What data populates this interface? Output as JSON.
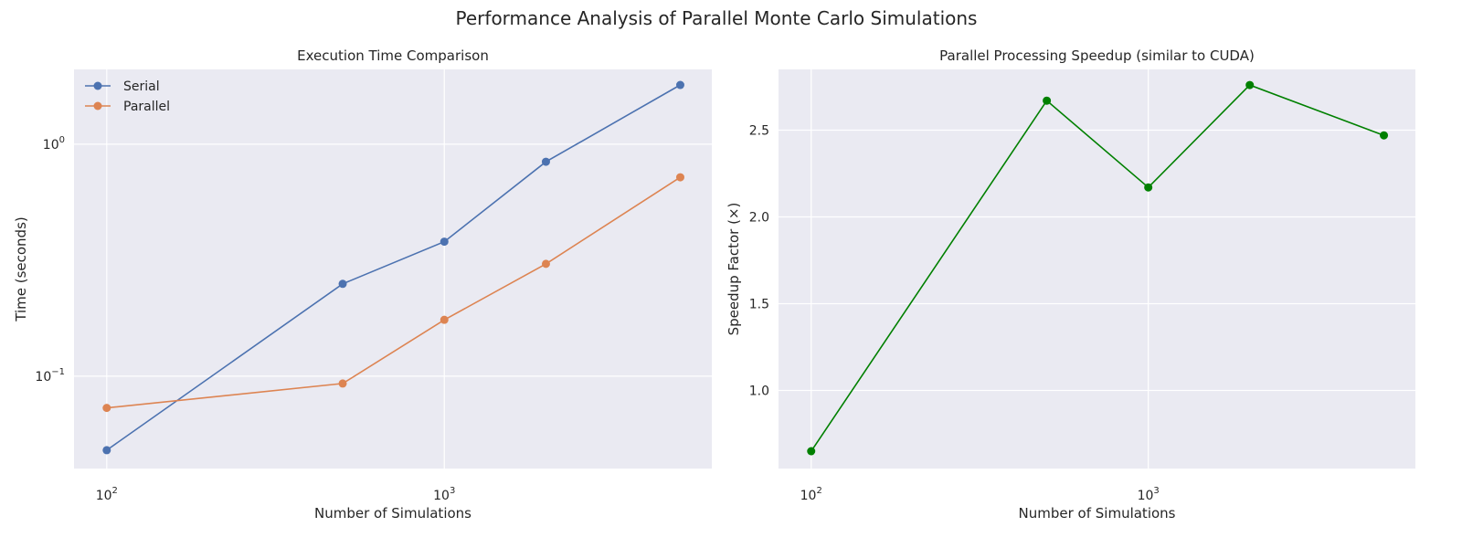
{
  "figure": {
    "title": "Performance Analysis of Parallel Monte Carlo Simulations"
  },
  "chart_data": [
    {
      "type": "line",
      "title": "Execution Time Comparison",
      "xlabel": "Number of Simulations",
      "ylabel": "Time (seconds)",
      "xscale": "log",
      "yscale": "log",
      "x": [
        100,
        500,
        1000,
        2000,
        5000
      ],
      "xlim": [
        80,
        6200
      ],
      "ylim": [
        0.04,
        2.1
      ],
      "xticks": [
        {
          "base": "10",
          "exp": "2",
          "value": 100
        },
        {
          "base": "10",
          "exp": "3",
          "value": 1000
        }
      ],
      "yticks": [
        {
          "base": "10",
          "exp": "−1",
          "value": 0.1
        },
        {
          "base": "10",
          "exp": "0",
          "value": 1
        }
      ],
      "grid": true,
      "legend": "top-left",
      "series": [
        {
          "name": "Serial",
          "color": "#4c72b0",
          "marker": "circle",
          "values": [
            0.048,
            0.25,
            0.38,
            0.84,
            1.8
          ]
        },
        {
          "name": "Parallel",
          "color": "#dd8452",
          "marker": "circle",
          "values": [
            0.073,
            0.093,
            0.175,
            0.305,
            0.72
          ]
        }
      ]
    },
    {
      "type": "line",
      "title": "Parallel Processing Speedup (similar to CUDA)",
      "xlabel": "Number of Simulations",
      "ylabel": "Speedup Factor (×)",
      "xscale": "log",
      "yscale": "linear",
      "x": [
        100,
        500,
        1000,
        2000,
        5000
      ],
      "xlim": [
        80,
        6200
      ],
      "ylim": [
        0.55,
        2.85
      ],
      "xticks": [
        {
          "base": "10",
          "exp": "2",
          "value": 100
        },
        {
          "base": "10",
          "exp": "3",
          "value": 1000
        }
      ],
      "yticks": [
        {
          "label": "1.0",
          "value": 1.0
        },
        {
          "label": "1.5",
          "value": 1.5
        },
        {
          "label": "2.0",
          "value": 2.0
        },
        {
          "label": "2.5",
          "value": 2.5
        }
      ],
      "grid": true,
      "series": [
        {
          "color": "#008000",
          "marker": "circle",
          "values": [
            0.65,
            2.67,
            2.17,
            2.76,
            2.47
          ]
        }
      ]
    }
  ]
}
